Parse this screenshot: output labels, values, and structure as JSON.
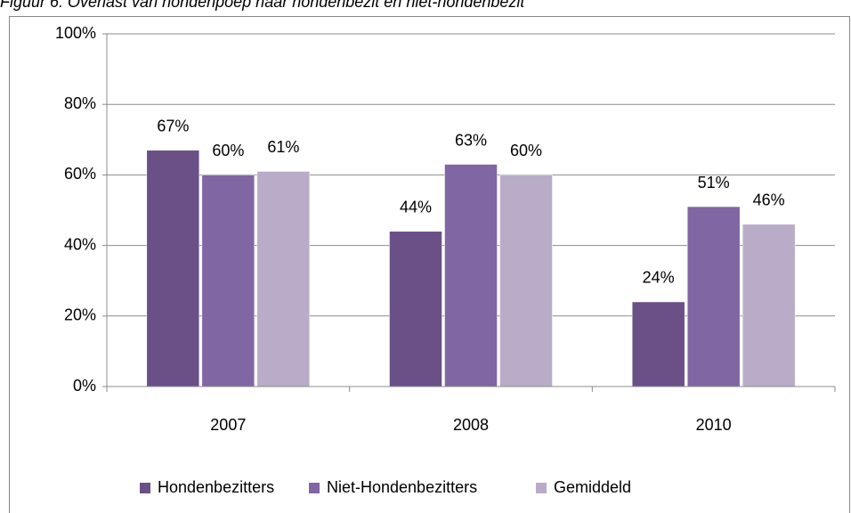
{
  "chart_data": {
    "type": "bar",
    "title": "Figuur 6: Overlast van hondenpoep naar hondenbezit en niet-hondenbezit",
    "categories": [
      "2007",
      "2008",
      "2010"
    ],
    "series": [
      {
        "name": "Hondenbezitters",
        "color": "#6a5087",
        "values": [
          67,
          44,
          24
        ],
        "value_labels": [
          "67%",
          "44%",
          "24%"
        ]
      },
      {
        "name": "Niet-Hondenbezitters",
        "color": "#8066a3",
        "values": [
          60,
          63,
          51
        ],
        "value_labels": [
          "60%",
          "63%",
          "51%"
        ]
      },
      {
        "name": "Gemiddeld",
        "color": "#b9acc9",
        "values": [
          61,
          60,
          46
        ],
        "value_labels": [
          "61%",
          "60%",
          "46%"
        ]
      }
    ],
    "ylim": [
      0,
      100
    ],
    "yticks": [
      {
        "value": 0,
        "label": "0%"
      },
      {
        "value": 20,
        "label": "20%"
      },
      {
        "value": 40,
        "label": "40%"
      },
      {
        "value": 60,
        "label": "60%"
      },
      {
        "value": 80,
        "label": "80%"
      },
      {
        "value": 100,
        "label": "100%"
      }
    ],
    "grid": true,
    "legend": "bottom"
  }
}
